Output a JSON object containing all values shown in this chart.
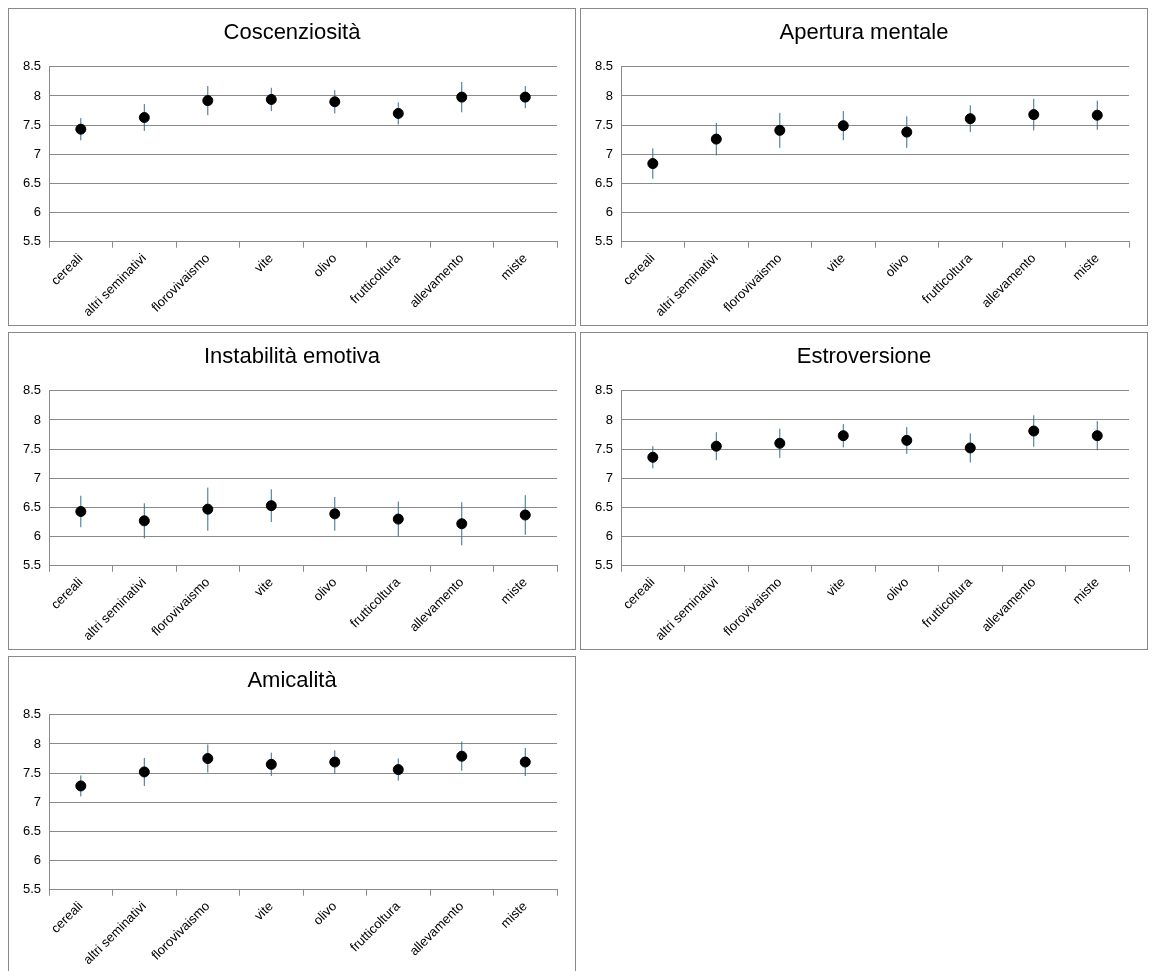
{
  "chart_data": [
    {
      "type": "scatter",
      "title": "Coscenziosità",
      "categories": [
        "cereali",
        "altri seminativi",
        "florovivaismo",
        "vite",
        "olivo",
        "frutticoltura",
        "allevamento",
        "miste"
      ],
      "series": [
        {
          "color": "#000000",
          "values": [
            7.43,
            7.63,
            7.92,
            7.94,
            7.9,
            7.7,
            7.98,
            7.98
          ],
          "errors": [
            0.19,
            0.23,
            0.25,
            0.2,
            0.2,
            0.19,
            0.26,
            0.19
          ]
        }
      ],
      "ylim": [
        5.5,
        8.5
      ],
      "yticks": [
        5.5,
        6,
        6.5,
        7,
        7.5,
        8,
        8.5
      ],
      "grid": "y",
      "legend": false,
      "marker": "circle"
    },
    {
      "type": "scatter",
      "title": "Apertura mentale",
      "categories": [
        "cereali",
        "altri seminativi",
        "florovivaismo",
        "vite",
        "olivo",
        "frutticoltura",
        "allevamento",
        "miste"
      ],
      "series": [
        {
          "color": "#000000",
          "values": [
            6.84,
            7.26,
            7.41,
            7.49,
            7.38,
            7.61,
            7.68,
            7.67
          ],
          "errors": [
            0.26,
            0.28,
            0.3,
            0.25,
            0.27,
            0.23,
            0.27,
            0.25
          ]
        }
      ],
      "ylim": [
        5.5,
        8.5
      ],
      "yticks": [
        5.5,
        6,
        6.5,
        7,
        7.5,
        8,
        8.5
      ],
      "grid": "y",
      "legend": false,
      "marker": "circle"
    },
    {
      "type": "scatter",
      "title": "Instabilità emotiva",
      "categories": [
        "cereali",
        "altri seminativi",
        "florovivaismo",
        "vite",
        "olivo",
        "frutticoltura",
        "allevamento",
        "miste"
      ],
      "series": [
        {
          "color": "#000000",
          "values": [
            6.43,
            6.27,
            6.47,
            6.53,
            6.39,
            6.3,
            6.22,
            6.37
          ],
          "errors": [
            0.27,
            0.3,
            0.37,
            0.28,
            0.29,
            0.3,
            0.37,
            0.34
          ]
        }
      ],
      "ylim": [
        5.5,
        8.5
      ],
      "yticks": [
        5.5,
        6,
        6.5,
        7,
        7.5,
        8,
        8.5
      ],
      "grid": "y",
      "legend": false,
      "marker": "circle"
    },
    {
      "type": "scatter",
      "title": "Estroversione",
      "categories": [
        "cereali",
        "altri seminativi",
        "florovivaismo",
        "vite",
        "olivo",
        "frutticoltura",
        "allevamento",
        "miste"
      ],
      "series": [
        {
          "color": "#000000",
          "values": [
            7.36,
            7.55,
            7.6,
            7.73,
            7.65,
            7.52,
            7.81,
            7.73
          ],
          "errors": [
            0.19,
            0.24,
            0.25,
            0.2,
            0.23,
            0.25,
            0.27,
            0.25
          ]
        }
      ],
      "ylim": [
        5.5,
        8.5
      ],
      "yticks": [
        5.5,
        6,
        6.5,
        7,
        7.5,
        8,
        8.5
      ],
      "grid": "y",
      "legend": false,
      "marker": "circle"
    },
    {
      "type": "scatter",
      "title": "Amicalità",
      "categories": [
        "cereali",
        "altri seminativi",
        "florovivaismo",
        "vite",
        "olivo",
        "frutticoltura",
        "allevamento",
        "miste"
      ],
      "series": [
        {
          "color": "#000000",
          "values": [
            7.28,
            7.52,
            7.75,
            7.65,
            7.69,
            7.56,
            7.79,
            7.69
          ],
          "errors": [
            0.18,
            0.24,
            0.24,
            0.2,
            0.2,
            0.19,
            0.25,
            0.24
          ]
        }
      ],
      "ylim": [
        5.5,
        8.5
      ],
      "yticks": [
        5.5,
        6,
        6.5,
        7,
        7.5,
        8,
        8.5
      ],
      "grid": "y",
      "legend": false,
      "marker": "circle"
    }
  ]
}
